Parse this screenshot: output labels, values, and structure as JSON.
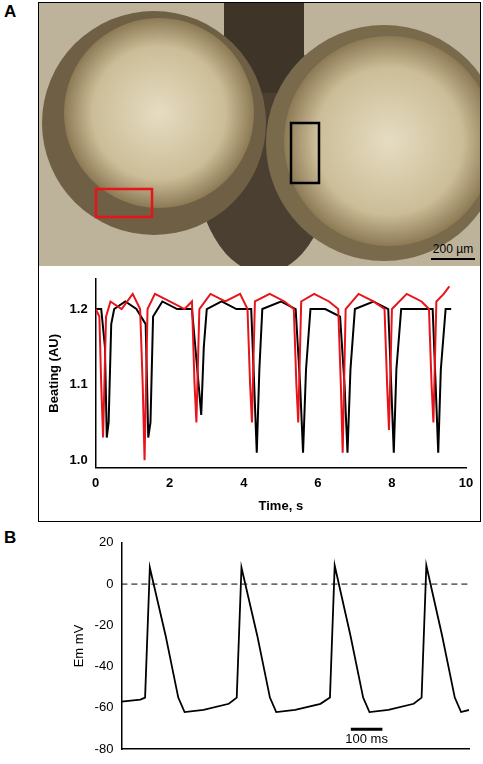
{
  "panel_labels": [
    "A",
    "B"
  ],
  "micrograph": {
    "scale_bar_label": "200 µm"
  },
  "chart_data": [
    {
      "type": "line",
      "x_label": "Time, s",
      "y_label": "Beating (AU)",
      "xlim": [
        0,
        10
      ],
      "xticks": [
        0,
        2,
        4,
        6,
        8,
        10
      ],
      "ylim": [
        0.99,
        1.24
      ],
      "yticks": [
        {
          "value": 1,
          "label": "1.0"
        },
        1.1,
        1.2
      ],
      "grid": false,
      "series": [
        {
          "color": "#e8141b",
          "x": [
            0,
            0.1,
            0.15,
            0.2,
            0.28,
            0.4,
            0.7,
            1.0,
            1.2,
            1.27,
            1.32,
            1.4,
            1.6,
            2.0,
            2.4,
            2.6,
            2.67,
            2.72,
            2.8,
            3.1,
            3.5,
            3.9,
            4.1,
            4.17,
            4.22,
            4.3,
            4.7,
            5.1,
            5.35,
            5.42,
            5.47,
            5.55,
            5.9,
            6.3,
            6.55,
            6.62,
            6.67,
            6.75,
            7.1,
            7.5,
            7.8,
            7.87,
            7.92,
            8.0,
            8.4,
            8.8,
            9.0,
            9.07,
            9.12,
            9.2,
            9.4,
            9.55
          ],
          "values": [
            1.2,
            1.19,
            1.1,
            1.03,
            1.19,
            1.21,
            1.2,
            1.22,
            1.2,
            1.1,
            1.0,
            1.2,
            1.22,
            1.21,
            1.2,
            1.21,
            1.1,
            1.05,
            1.2,
            1.22,
            1.21,
            1.22,
            1.2,
            1.1,
            1.05,
            1.21,
            1.22,
            1.21,
            1.2,
            1.1,
            1.05,
            1.21,
            1.22,
            1.21,
            1.2,
            1.1,
            1.01,
            1.2,
            1.22,
            1.21,
            1.2,
            1.1,
            1.04,
            1.2,
            1.22,
            1.21,
            1.2,
            1.1,
            1.05,
            1.21,
            1.22,
            1.23
          ]
        },
        {
          "color": "#000000",
          "x": [
            0,
            0.15,
            0.25,
            0.3,
            0.35,
            0.42,
            0.5,
            0.8,
            1.1,
            1.35,
            1.42,
            1.48,
            1.55,
            1.8,
            2.2,
            2.6,
            2.78,
            2.85,
            2.92,
            3.0,
            3.4,
            3.8,
            4.2,
            4.28,
            4.35,
            4.42,
            4.5,
            5.0,
            5.4,
            5.52,
            5.6,
            5.68,
            5.8,
            6.2,
            6.6,
            6.72,
            6.8,
            6.88,
            7.0,
            7.5,
            7.9,
            7.98,
            8.05,
            8.12,
            8.25,
            8.7,
            9.1,
            9.18,
            9.25,
            9.32,
            9.45,
            9.6
          ],
          "values": [
            1.2,
            1.2,
            1.15,
            1.03,
            1.05,
            1.18,
            1.2,
            1.21,
            1.2,
            1.18,
            1.03,
            1.05,
            1.19,
            1.21,
            1.2,
            1.2,
            1.1,
            1.06,
            1.15,
            1.2,
            1.21,
            1.2,
            1.2,
            1.1,
            1.01,
            1.12,
            1.2,
            1.21,
            1.2,
            1.1,
            1.01,
            1.12,
            1.2,
            1.2,
            1.19,
            1.1,
            1.01,
            1.12,
            1.2,
            1.21,
            1.2,
            1.1,
            1.01,
            1.12,
            1.2,
            1.2,
            1.2,
            1.1,
            1.01,
            1.12,
            1.2,
            1.2
          ]
        }
      ]
    },
    {
      "type": "line",
      "y_label": "Em mV",
      "xlim": [
        0,
        1100
      ],
      "ylim": [
        -80,
        20
      ],
      "yticks": [
        -80,
        -60,
        -40,
        -20,
        0,
        20
      ],
      "tick_labels": "y",
      "grid": false,
      "reference_line": {
        "value": 0,
        "line_style": "dashed"
      },
      "scale_bar": {
        "length": 100,
        "label": "100 ms"
      },
      "series": [
        {
          "color": "#000000",
          "x": [
            0,
            60,
            75,
            90,
            140,
            180,
            200,
            260,
            340,
            365,
            380,
            430,
            470,
            490,
            550,
            630,
            660,
            675,
            725,
            765,
            785,
            845,
            925,
            950,
            965,
            1015,
            1055,
            1075,
            1100
          ],
          "values": [
            -57,
            -56,
            -55,
            8,
            -25,
            -55,
            -62,
            -61,
            -58,
            -55,
            8,
            -25,
            -55,
            -62,
            -61,
            -58,
            -55,
            9,
            -25,
            -55,
            -62,
            -61,
            -58,
            -55,
            9,
            -25,
            -55,
            -62,
            -61
          ]
        }
      ]
    }
  ]
}
